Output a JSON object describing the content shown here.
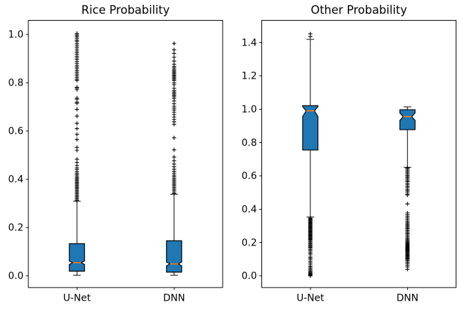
{
  "figure": {
    "background": "#ffffff"
  },
  "colors": {
    "box_fill": "#1f77b4",
    "box_edge": "#000000",
    "median_line": "#ff7f0e",
    "whisker": "#000000",
    "flier": "#000000",
    "tick_text": "#000000",
    "axes_edge": "#000000"
  },
  "chart_data": [
    {
      "type": "boxplot",
      "title": "Rice Probability",
      "xlabel": "",
      "ylabel": "",
      "categories": [
        "U-Net",
        "DNN"
      ],
      "ylim": [
        -0.049,
        1.059
      ],
      "yticks": [
        0.0,
        0.2,
        0.4,
        0.6,
        0.8,
        1.0
      ],
      "notched": true,
      "grid": false,
      "legend": "none",
      "series": [
        {
          "name": "U-Net",
          "whisker_low": 0.002,
          "q1": 0.019,
          "median": 0.054,
          "q3": 0.133,
          "whisker_high": 0.309,
          "notch_low": 0.047,
          "notch_high": 0.061,
          "fliers": [
            1.005,
            1.0,
            0.995,
            0.99,
            0.983,
            0.976,
            0.97,
            0.962,
            0.955,
            0.948,
            0.94,
            0.932,
            0.925,
            0.918,
            0.91,
            0.903,
            0.896,
            0.888,
            0.88,
            0.872,
            0.865,
            0.858,
            0.85,
            0.843,
            0.836,
            0.829,
            0.822,
            0.815,
            0.81,
            0.782,
            0.778,
            0.772,
            0.737,
            0.732,
            0.72,
            0.715,
            0.69,
            0.662,
            0.632,
            0.61,
            0.586,
            0.565,
            0.532,
            0.52,
            0.483,
            0.47,
            0.457,
            0.447,
            0.44,
            0.432,
            0.425,
            0.419,
            0.413,
            0.407,
            0.402,
            0.397,
            0.392,
            0.387,
            0.382,
            0.377,
            0.372,
            0.367,
            0.362,
            0.357,
            0.352,
            0.347,
            0.342,
            0.337,
            0.332,
            0.327,
            0.322,
            0.317,
            0.312
          ]
        },
        {
          "name": "DNN",
          "whisker_low": 0.002,
          "q1": 0.015,
          "median": 0.049,
          "q3": 0.145,
          "whisker_high": 0.338,
          "notch_low": 0.041,
          "notch_high": 0.057,
          "fliers": [
            0.963,
            0.937,
            0.922,
            0.906,
            0.89,
            0.877,
            0.868,
            0.862,
            0.856,
            0.85,
            0.845,
            0.84,
            0.835,
            0.83,
            0.825,
            0.82,
            0.815,
            0.81,
            0.8,
            0.792,
            0.777,
            0.768,
            0.762,
            0.757,
            0.752,
            0.747,
            0.742,
            0.735,
            0.725,
            0.713,
            0.703,
            0.695,
            0.687,
            0.678,
            0.668,
            0.658,
            0.648,
            0.638,
            0.628,
            0.572,
            0.522,
            0.492,
            0.477,
            0.463,
            0.452,
            0.442,
            0.433,
            0.425,
            0.417,
            0.41,
            0.403,
            0.397,
            0.391,
            0.385,
            0.379,
            0.373,
            0.367,
            0.36,
            0.354,
            0.347,
            0.341
          ]
        }
      ]
    },
    {
      "type": "boxplot",
      "title": "Other Probability",
      "xlabel": "",
      "ylabel": "",
      "categories": [
        "U-Net",
        "DNN"
      ],
      "ylim": [
        -0.07,
        1.533
      ],
      "yticks": [
        0.0,
        0.2,
        0.4,
        0.6,
        0.8,
        1.0,
        1.2,
        1.4
      ],
      "notched": true,
      "grid": false,
      "legend": "none",
      "series": [
        {
          "name": "U-Net",
          "whisker_low": 0.353,
          "q1": 0.755,
          "median": 0.99,
          "q3": 1.021,
          "whisker_high": 1.419,
          "notch_low": 0.957,
          "notch_high": 1.015,
          "fliers": [
            1.452,
            1.436,
            0.347,
            0.342,
            0.337,
            0.332,
            0.327,
            0.322,
            0.317,
            0.312,
            0.307,
            0.302,
            0.297,
            0.292,
            0.287,
            0.282,
            0.277,
            0.272,
            0.267,
            0.262,
            0.257,
            0.252,
            0.247,
            0.242,
            0.237,
            0.232,
            0.227,
            0.222,
            0.217,
            0.212,
            0.205,
            0.198,
            0.192,
            0.186,
            0.18,
            0.174,
            0.168,
            0.16,
            0.152,
            0.143,
            0.135,
            0.126,
            0.113,
            0.106,
            0.097,
            0.087,
            0.077,
            0.067,
            0.057,
            0.05,
            0.042,
            0.035,
            0.028,
            0.022,
            0.017,
            0.012,
            0.008,
            0.004,
            0.0
          ]
        },
        {
          "name": "DNN",
          "whisker_low": 0.651,
          "q1": 0.877,
          "median": 0.955,
          "q3": 0.997,
          "whisker_high": 1.014,
          "notch_low": 0.933,
          "notch_high": 0.977,
          "fliers": [
            0.648,
            0.642,
            0.634,
            0.626,
            0.618,
            0.61,
            0.602,
            0.595,
            0.588,
            0.58,
            0.572,
            0.565,
            0.556,
            0.547,
            0.538,
            0.53,
            0.52,
            0.512,
            0.503,
            0.492,
            0.485,
            0.432,
            0.377,
            0.366,
            0.356,
            0.347,
            0.337,
            0.328,
            0.32,
            0.312,
            0.305,
            0.298,
            0.291,
            0.284,
            0.277,
            0.27,
            0.262,
            0.255,
            0.248,
            0.24,
            0.232,
            0.225,
            0.218,
            0.212,
            0.206,
            0.2,
            0.195,
            0.19,
            0.185,
            0.18,
            0.176,
            0.172,
            0.168,
            0.164,
            0.16,
            0.156,
            0.152,
            0.147,
            0.142,
            0.137,
            0.132,
            0.127,
            0.122,
            0.117,
            0.112,
            0.107,
            0.102,
            0.096,
            0.09,
            0.082,
            0.074,
            0.064,
            0.054,
            0.04
          ]
        }
      ]
    }
  ]
}
